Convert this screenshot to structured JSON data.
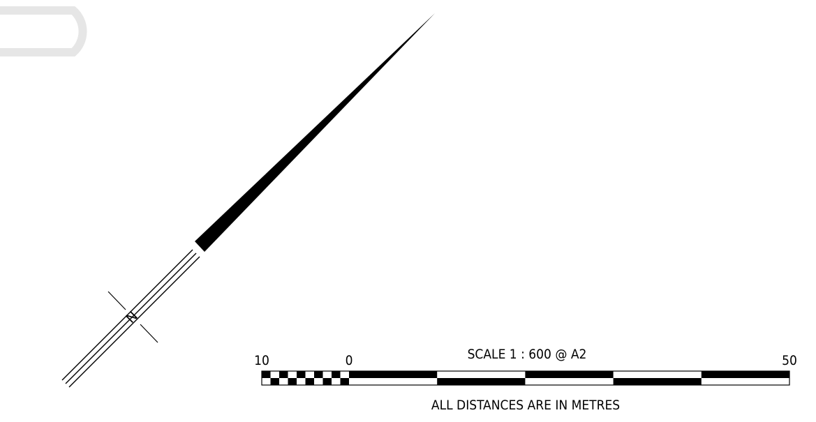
{
  "north_arrow": {
    "letter": "N"
  },
  "scale_bar": {
    "title": "SCALE  1 : 600 @ A2",
    "tick_labels": [
      "10",
      "0",
      "50"
    ],
    "note": "ALL DISTANCES ARE IN METRES"
  },
  "colors": {
    "ink": "#000000",
    "mark_light": "#e6e6e6"
  }
}
